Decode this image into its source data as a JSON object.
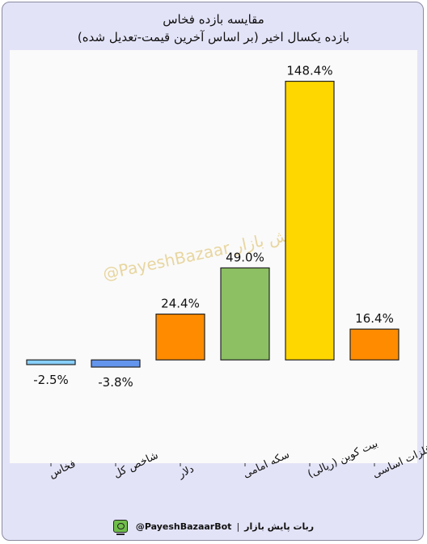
{
  "chart_data": {
    "type": "bar",
    "title": "مقایسه  بازده فخاس",
    "subtitle": "بازده یکسال اخیر (بر اساس آخرین قیمت-تعدیل شده)",
    "categories": [
      "فخاس",
      "شاخص کل",
      "دلار",
      "سکه امامی",
      "بیت کوین (ریالی)",
      "فلزات اساسی"
    ],
    "values": [
      -2.5,
      -3.8,
      24.4,
      49.0,
      148.4,
      16.4
    ],
    "value_labels": [
      "-2.5%",
      "-3.8%",
      "24.4%",
      "49.0%",
      "148.4%",
      "16.4%"
    ],
    "colors": [
      "#87cefa",
      "#6495ed",
      "#ff8c00",
      "#8cc063",
      "#ffd700",
      "#ff8c00"
    ],
    "ylim": [
      -55,
      165
    ],
    "grid": false,
    "legend": "none",
    "watermark": "@PayeshBazaar پایش بازار"
  },
  "footer": {
    "handle": "@PayeshBazaarBot",
    "separator": "|",
    "bot_name": "ربات پایش بازار",
    "icon": "bot-monitor-icon"
  }
}
